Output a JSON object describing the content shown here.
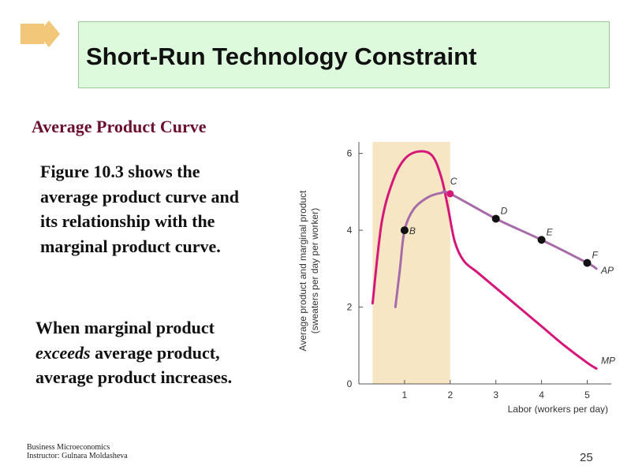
{
  "slide": {
    "title": "Short-Run Technology Constraint",
    "subtitle": "Average Product Curve",
    "paragraph1": "Figure 10.3 shows the average product curve and its relationship with the marginal product curve.",
    "paragraph2_before": "When marginal product ",
    "paragraph2_emphasis": "exceeds",
    "paragraph2_after": " average product, average product increases.",
    "footer_line1": "Business Microeconomics",
    "footer_line2": "Instructor: Gulnara Moldasheva",
    "page_number": "25"
  },
  "colors": {
    "title_bg": "#ddfadd",
    "subtitle": "#6a0f2e",
    "mp_curve": "#d6177a",
    "ap_curve": "#a66ba8",
    "shaded_region": "#f6e6c4",
    "logo": "#f3c77a"
  },
  "chart_data": {
    "type": "line",
    "xlabel": "Labor (workers per day)",
    "ylabel_line1": "Average product and marginal product",
    "ylabel_line2": "(sweaters per day per worker)",
    "xlim": [
      0,
      5.7
    ],
    "ylim": [
      0,
      6.3
    ],
    "x_ticks": [
      1,
      2,
      3,
      4,
      5
    ],
    "y_ticks": [
      0,
      2,
      4,
      6
    ],
    "shaded_x_range": [
      0.3,
      2
    ],
    "series": [
      {
        "name": "MP",
        "points": [
          [
            0.3,
            2.1
          ],
          [
            0.5,
            4.2
          ],
          [
            0.75,
            5.3
          ],
          [
            1.0,
            5.85
          ],
          [
            1.3,
            6.05
          ],
          [
            1.6,
            5.95
          ],
          [
            1.8,
            5.4
          ],
          [
            1.95,
            4.6
          ],
          [
            2.1,
            3.7
          ],
          [
            2.3,
            3.2
          ],
          [
            2.6,
            2.9
          ],
          [
            3.0,
            2.5
          ],
          [
            3.5,
            2.0
          ],
          [
            4.0,
            1.5
          ],
          [
            4.5,
            1.0
          ],
          [
            5.0,
            0.55
          ],
          [
            5.2,
            0.4
          ]
        ]
      },
      {
        "name": "AP",
        "points": [
          [
            0.8,
            2.0
          ],
          [
            0.9,
            3.0
          ],
          [
            1.0,
            4.0
          ],
          [
            1.2,
            4.55
          ],
          [
            1.5,
            4.85
          ],
          [
            1.8,
            4.97
          ],
          [
            2.0,
            4.95
          ],
          [
            3.0,
            4.3
          ],
          [
            4.0,
            3.75
          ],
          [
            5.0,
            3.15
          ],
          [
            5.2,
            3.0
          ]
        ]
      }
    ],
    "labeled_points": [
      {
        "label": "B",
        "x": 1,
        "y": 4.0
      },
      {
        "label": "C",
        "x": 2,
        "y": 4.95
      },
      {
        "label": "D",
        "x": 3,
        "y": 4.3
      },
      {
        "label": "E",
        "x": 4,
        "y": 3.75
      },
      {
        "label": "F",
        "x": 5,
        "y": 3.15
      }
    ]
  }
}
